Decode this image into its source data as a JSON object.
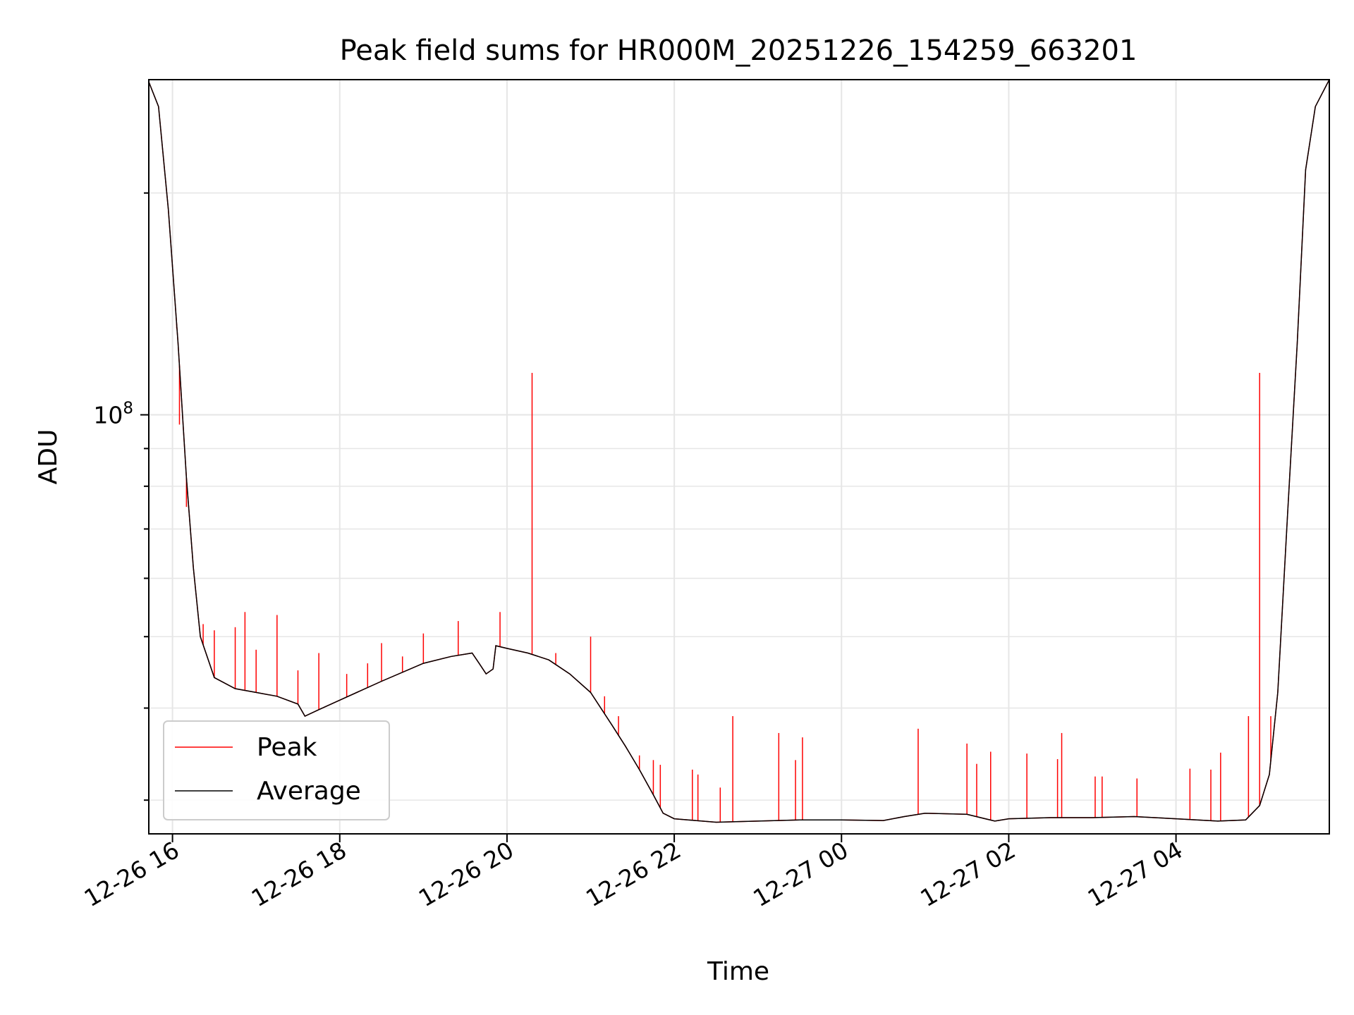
{
  "chart_data": {
    "type": "line",
    "title": "Peak field sums for HR000M_20251226_154259_663201",
    "xlabel": "Time",
    "ylabel": "ADU",
    "yscale": "log",
    "grid": true,
    "legend_position": "lower-left",
    "x_range": [
      "2025-12-26 15:43",
      "2025-12-27 05:50"
    ],
    "y_range": [
      27000000,
      285000000
    ],
    "x_ticks": [
      "12-26 16",
      "12-26 18",
      "12-26 20",
      "12-26 22",
      "12-27 00",
      "12-27 02",
      "12-27 04"
    ],
    "x_tick_values": [
      "2025-12-26 16:00",
      "2025-12-26 18:00",
      "2025-12-26 20:00",
      "2025-12-26 22:00",
      "2025-12-27 00:00",
      "2025-12-27 02:00",
      "2025-12-27 04:00"
    ],
    "y_ticks": [
      {
        "base": "10",
        "exp": "8",
        "value": 100000000
      }
    ],
    "series": [
      {
        "name": "Peak",
        "color": "#ff0000",
        "baseline": "Average",
        "spikes": [
          [
            "2025-12-26 16:03",
            131000000
          ],
          [
            "2025-12-26 16:05",
            97000000
          ],
          [
            "2025-12-26 16:10",
            75000000
          ],
          [
            "2025-12-26 16:22",
            52000000
          ],
          [
            "2025-12-26 16:30",
            51000000
          ],
          [
            "2025-12-26 16:45",
            51500000
          ],
          [
            "2025-12-26 16:52",
            54000000
          ],
          [
            "2025-12-26 17:00",
            48000000
          ],
          [
            "2025-12-26 17:15",
            53500000
          ],
          [
            "2025-12-26 17:30",
            45000000
          ],
          [
            "2025-12-26 17:45",
            47500000
          ],
          [
            "2025-12-26 18:05",
            44500000
          ],
          [
            "2025-12-26 18:20",
            46000000
          ],
          [
            "2025-12-26 18:30",
            49000000
          ],
          [
            "2025-12-26 18:45",
            47000000
          ],
          [
            "2025-12-26 19:00",
            50500000
          ],
          [
            "2025-12-26 19:25",
            52500000
          ],
          [
            "2025-12-26 19:55",
            54000000
          ],
          [
            "2025-12-26 20:18",
            114000000
          ],
          [
            "2025-12-26 20:35",
            47500000
          ],
          [
            "2025-12-26 21:00",
            50000000
          ],
          [
            "2025-12-26 21:10",
            41500000
          ],
          [
            "2025-12-26 21:20",
            39000000
          ],
          [
            "2025-12-26 21:35",
            34500000
          ],
          [
            "2025-12-26 21:45",
            34000000
          ],
          [
            "2025-12-26 21:50",
            33500000
          ],
          [
            "2025-12-26 22:13",
            33000000
          ],
          [
            "2025-12-26 22:17",
            32500000
          ],
          [
            "2025-12-26 22:33",
            31200000
          ],
          [
            "2025-12-26 22:42",
            39000000
          ],
          [
            "2025-12-26 23:15",
            37000000
          ],
          [
            "2025-12-26 23:27",
            34000000
          ],
          [
            "2025-12-26 23:32",
            36500000
          ],
          [
            "2025-12-27 00:55",
            37500000
          ],
          [
            "2025-12-27 01:30",
            35800000
          ],
          [
            "2025-12-27 01:37",
            33600000
          ],
          [
            "2025-12-27 01:47",
            34900000
          ],
          [
            "2025-12-27 02:13",
            34700000
          ],
          [
            "2025-12-27 02:35",
            34100000
          ],
          [
            "2025-12-27 02:38",
            37000000
          ],
          [
            "2025-12-27 03:02",
            32300000
          ],
          [
            "2025-12-27 03:07",
            32300000
          ],
          [
            "2025-12-27 03:32",
            32100000
          ],
          [
            "2025-12-27 04:10",
            33100000
          ],
          [
            "2025-12-27 04:25",
            33000000
          ],
          [
            "2025-12-27 04:32",
            34800000
          ],
          [
            "2025-12-27 04:52",
            39000000
          ],
          [
            "2025-12-27 05:00",
            114000000
          ],
          [
            "2025-12-27 05:08",
            39000000
          ]
        ]
      },
      {
        "name": "Average",
        "color": "#000000",
        "points": [
          [
            "2025-12-26 15:43",
            283000000
          ],
          [
            "2025-12-26 15:50",
            262000000
          ],
          [
            "2025-12-26 15:57",
            190000000
          ],
          [
            "2025-12-26 16:04",
            125000000
          ],
          [
            "2025-12-26 16:10",
            82000000
          ],
          [
            "2025-12-26 16:15",
            62000000
          ],
          [
            "2025-12-26 16:20",
            50000000
          ],
          [
            "2025-12-26 16:30",
            44000000
          ],
          [
            "2025-12-26 16:45",
            42500000
          ],
          [
            "2025-12-26 17:00",
            42000000
          ],
          [
            "2025-12-26 17:15",
            41500000
          ],
          [
            "2025-12-26 17:30",
            40500000
          ],
          [
            "2025-12-26 17:35",
            39000000
          ],
          [
            "2025-12-26 17:45",
            39800000
          ],
          [
            "2025-12-26 18:00",
            41000000
          ],
          [
            "2025-12-26 18:30",
            43500000
          ],
          [
            "2025-12-26 19:00",
            46000000
          ],
          [
            "2025-12-26 19:20",
            47000000
          ],
          [
            "2025-12-26 19:35",
            47500000
          ],
          [
            "2025-12-26 19:40",
            46000000
          ],
          [
            "2025-12-26 19:45",
            44500000
          ],
          [
            "2025-12-26 19:50",
            45200000
          ],
          [
            "2025-12-26 19:52",
            48600000
          ],
          [
            "2025-12-26 20:00",
            48200000
          ],
          [
            "2025-12-26 20:15",
            47500000
          ],
          [
            "2025-12-26 20:30",
            46500000
          ],
          [
            "2025-12-26 20:45",
            44500000
          ],
          [
            "2025-12-26 21:00",
            42000000
          ],
          [
            "2025-12-26 21:15",
            38000000
          ],
          [
            "2025-12-26 21:25",
            35500000
          ],
          [
            "2025-12-26 21:35",
            33000000
          ],
          [
            "2025-12-26 21:45",
            30500000
          ],
          [
            "2025-12-26 21:52",
            28800000
          ],
          [
            "2025-12-26 22:00",
            28300000
          ],
          [
            "2025-12-26 22:30",
            28000000
          ],
          [
            "2025-12-26 23:00",
            28100000
          ],
          [
            "2025-12-26 23:30",
            28200000
          ],
          [
            "2025-12-27 00:00",
            28200000
          ],
          [
            "2025-12-27 00:30",
            28150000
          ],
          [
            "2025-12-27 00:45",
            28500000
          ],
          [
            "2025-12-27 01:00",
            28800000
          ],
          [
            "2025-12-27 01:30",
            28700000
          ],
          [
            "2025-12-27 01:50",
            28100000
          ],
          [
            "2025-12-27 02:00",
            28300000
          ],
          [
            "2025-12-27 02:30",
            28400000
          ],
          [
            "2025-12-27 03:00",
            28400000
          ],
          [
            "2025-12-27 03:30",
            28500000
          ],
          [
            "2025-12-27 04:00",
            28300000
          ],
          [
            "2025-12-27 04:30",
            28100000
          ],
          [
            "2025-12-27 04:50",
            28200000
          ],
          [
            "2025-12-27 05:00",
            29500000
          ],
          [
            "2025-12-27 05:07",
            32500000
          ],
          [
            "2025-12-27 05:13",
            42000000
          ],
          [
            "2025-12-27 05:20",
            73000000
          ],
          [
            "2025-12-27 05:27",
            125000000
          ],
          [
            "2025-12-27 05:33",
            215000000
          ],
          [
            "2025-12-27 05:40",
            262000000
          ],
          [
            "2025-12-27 05:50",
            285000000
          ]
        ]
      }
    ]
  }
}
